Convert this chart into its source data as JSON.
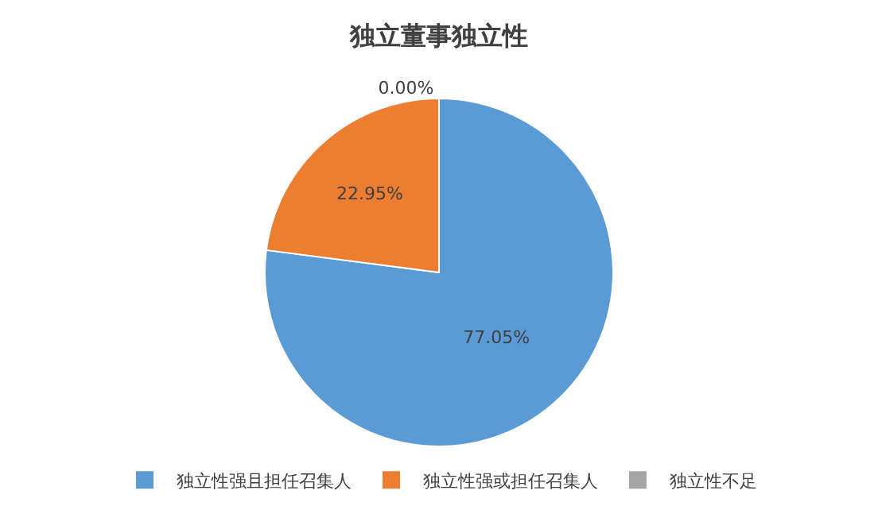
{
  "chart_data": {
    "type": "pie",
    "title": "独立董事独立性",
    "categories": [
      "独立性强且担任召集人",
      "独立性强或担任召集人",
      "独立性不足"
    ],
    "values": [
      77.05,
      22.95,
      0.0
    ],
    "colors": [
      "#5b9bd5",
      "#ed7d31",
      "#a5a5a5"
    ],
    "value_labels": [
      "77.05%",
      "22.95%",
      "0.00%"
    ],
    "legend": "bottom"
  }
}
